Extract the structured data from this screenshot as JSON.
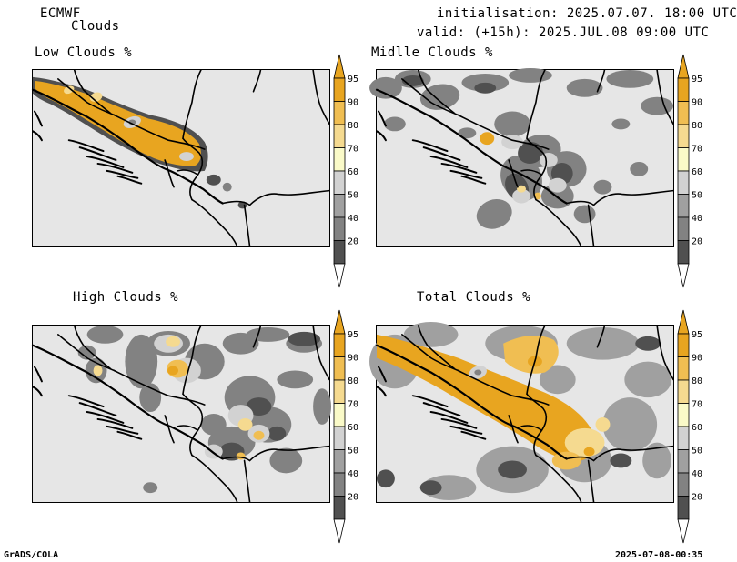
{
  "header": {
    "model": "ECMWF",
    "product": "Clouds",
    "init": "initialisation: 2025.07.07. 18:00 UTC",
    "valid": "valid: (+15h): 2025.JUL.08 09:00 UTC"
  },
  "panels": [
    {
      "id": "low",
      "title": "Low Clouds %"
    },
    {
      "id": "middle",
      "title": "Midlle Clouds %"
    },
    {
      "id": "high",
      "title": "High Clouds %"
    },
    {
      "id": "total",
      "title": "Total Clouds %"
    }
  ],
  "colorbar": {
    "labels": [
      "95",
      "90",
      "80",
      "70",
      "60",
      "50",
      "40",
      "20"
    ],
    "colors": {
      "c95": "#e8a520",
      "c90": "#f0be52",
      "c80": "#f5da90",
      "c70": "#fafac8",
      "c60": "#d2d2d2",
      "c50": "#a0a0a0",
      "c40": "#828282",
      "c20": "#505050",
      "below": "#ffffff",
      "background": "#e6e6e6"
    }
  },
  "footer": {
    "left": "GrADS/COLA",
    "right": "2025-07-08-00:35"
  }
}
